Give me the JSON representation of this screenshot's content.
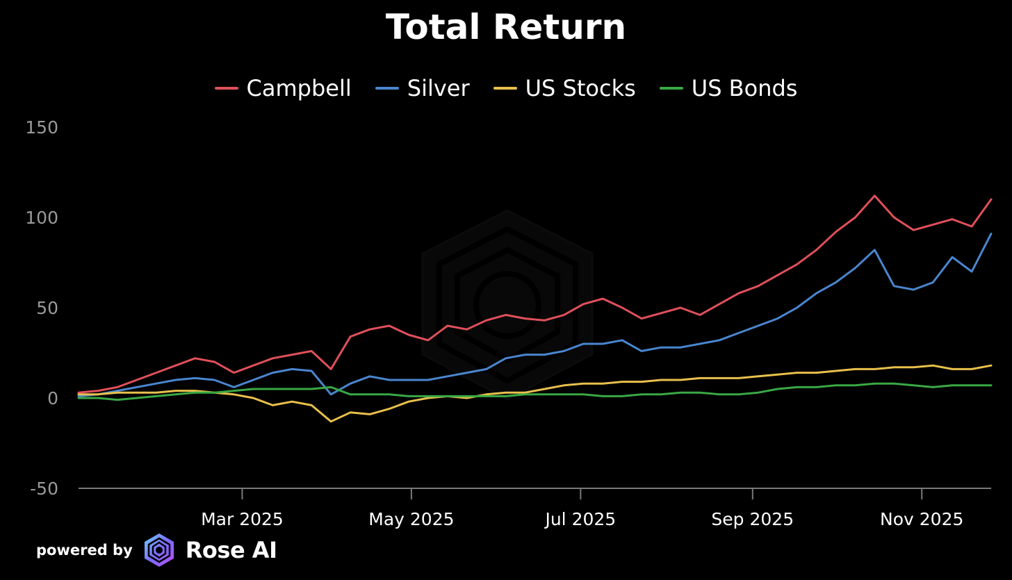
{
  "chart_data": {
    "type": "line",
    "title": "Total Return",
    "xlabel": "",
    "ylabel": "",
    "ylim": [
      -50,
      150
    ],
    "yticks": [
      150,
      100,
      50,
      0,
      -50
    ],
    "xtick_labels": [
      "Mar 2025",
      "May 2025",
      "Jul 2025",
      "Sep 2025",
      "Nov 2025"
    ],
    "xtick_dates": [
      "2025-03-01",
      "2025-05-01",
      "2025-07-01",
      "2025-09-01",
      "2025-11-01"
    ],
    "xrange": [
      "2025-01-01",
      "2025-11-26"
    ],
    "grid": false,
    "legend_position": "top-center",
    "x": [
      "2025-01-01",
      "2025-01-08",
      "2025-01-15",
      "2025-01-22",
      "2025-01-29",
      "2025-02-05",
      "2025-02-12",
      "2025-02-19",
      "2025-02-26",
      "2025-03-05",
      "2025-03-12",
      "2025-03-19",
      "2025-03-26",
      "2025-04-02",
      "2025-04-09",
      "2025-04-16",
      "2025-04-23",
      "2025-04-30",
      "2025-05-07",
      "2025-05-14",
      "2025-05-21",
      "2025-05-28",
      "2025-06-04",
      "2025-06-11",
      "2025-06-18",
      "2025-06-25",
      "2025-07-02",
      "2025-07-09",
      "2025-07-16",
      "2025-07-23",
      "2025-07-30",
      "2025-08-06",
      "2025-08-13",
      "2025-08-20",
      "2025-08-27",
      "2025-09-03",
      "2025-09-10",
      "2025-09-17",
      "2025-09-24",
      "2025-10-01",
      "2025-10-08",
      "2025-10-15",
      "2025-10-22",
      "2025-10-29",
      "2025-11-05",
      "2025-11-12",
      "2025-11-19",
      "2025-11-26"
    ],
    "series": [
      {
        "name": "Campbell",
        "color": "#e0505a",
        "values": [
          3,
          4,
          6,
          10,
          14,
          18,
          22,
          20,
          14,
          18,
          22,
          24,
          26,
          16,
          34,
          38,
          40,
          35,
          32,
          40,
          38,
          43,
          46,
          44,
          43,
          46,
          52,
          55,
          50,
          44,
          47,
          50,
          46,
          52,
          58,
          62,
          68,
          74,
          82,
          92,
          100,
          112,
          100,
          93,
          96,
          99,
          95,
          110
        ]
      },
      {
        "name": "Silver",
        "color": "#4a86cf",
        "values": [
          1,
          2,
          4,
          6,
          8,
          10,
          11,
          10,
          6,
          10,
          14,
          16,
          15,
          2,
          8,
          12,
          10,
          10,
          10,
          12,
          14,
          16,
          22,
          24,
          24,
          26,
          30,
          30,
          32,
          26,
          28,
          28,
          30,
          32,
          36,
          40,
          44,
          50,
          58,
          64,
          72,
          82,
          62,
          60,
          64,
          78,
          70,
          91
        ]
      },
      {
        "name": "US Stocks",
        "color": "#e8c04c",
        "values": [
          2,
          2,
          3,
          3,
          3,
          4,
          4,
          3,
          2,
          0,
          -4,
          -2,
          -4,
          -13,
          -8,
          -9,
          -6,
          -2,
          0,
          1,
          0,
          2,
          3,
          3,
          5,
          7,
          8,
          8,
          9,
          9,
          10,
          10,
          11,
          11,
          11,
          12,
          13,
          14,
          14,
          15,
          16,
          16,
          17,
          17,
          18,
          16,
          16,
          18
        ]
      },
      {
        "name": "US Bonds",
        "color": "#3aa844",
        "values": [
          0,
          0,
          -1,
          0,
          1,
          2,
          3,
          3,
          4,
          5,
          5,
          5,
          5,
          6,
          2,
          2,
          2,
          1,
          1,
          1,
          1,
          1,
          1,
          2,
          2,
          2,
          2,
          1,
          1,
          2,
          2,
          3,
          3,
          2,
          2,
          3,
          5,
          6,
          6,
          7,
          7,
          8,
          8,
          7,
          6,
          7,
          7,
          7
        ]
      }
    ]
  },
  "footer": {
    "powered_by": "powered by",
    "brand": "Rose AI"
  },
  "watermark_icon": "rose-ai-hexagon-logo",
  "colors": {
    "background": "#000000",
    "text": "#ffffff",
    "axis_label": "#9a9a9a",
    "axis_line": "#7a7a7a"
  }
}
